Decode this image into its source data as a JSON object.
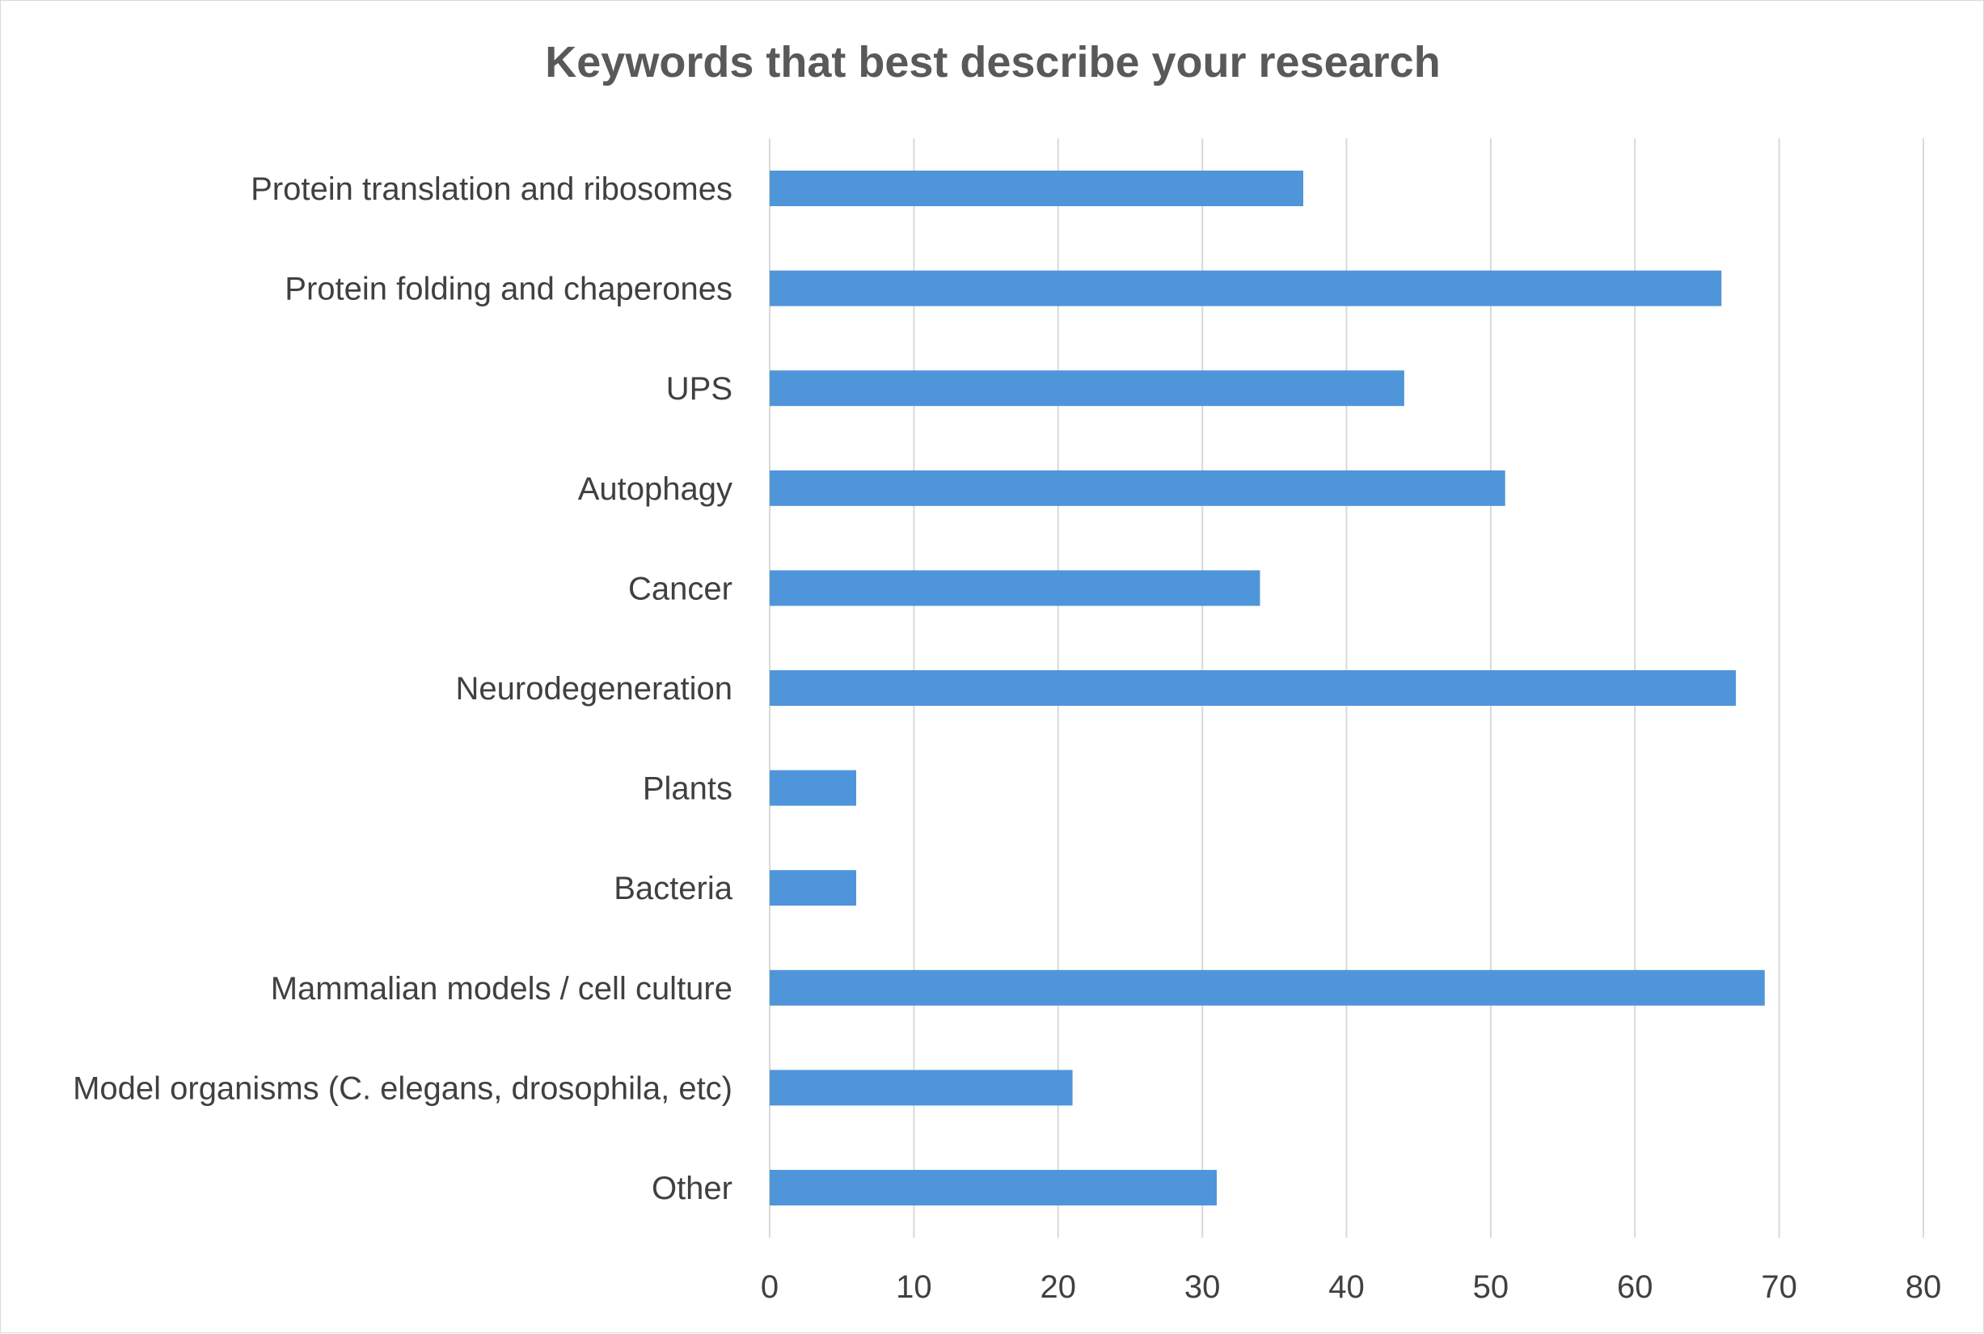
{
  "chart_data": {
    "type": "bar",
    "orientation": "horizontal",
    "title": "Keywords that best describe your research",
    "xlabel": "",
    "ylabel": "",
    "categories": [
      "Protein translation and ribosomes",
      "Protein folding and chaperones",
      "UPS",
      "Autophagy",
      "Cancer",
      "Neurodegeneration",
      "Plants",
      "Bacteria",
      "Mammalian models / cell culture",
      "Model organisms (C. elegans, drosophila, etc)",
      "Other"
    ],
    "values": [
      37,
      66,
      44,
      51,
      34,
      67,
      6,
      6,
      69,
      21,
      31
    ],
    "xlim": [
      0,
      80
    ],
    "xticks": [
      0,
      10,
      20,
      30,
      40,
      50,
      60,
      70,
      80
    ],
    "grid": true,
    "legend": "none",
    "colors": {
      "bar": "#4f95d9",
      "grid": "#d9d9d9",
      "title": "#595959",
      "labels": "#404040"
    }
  }
}
